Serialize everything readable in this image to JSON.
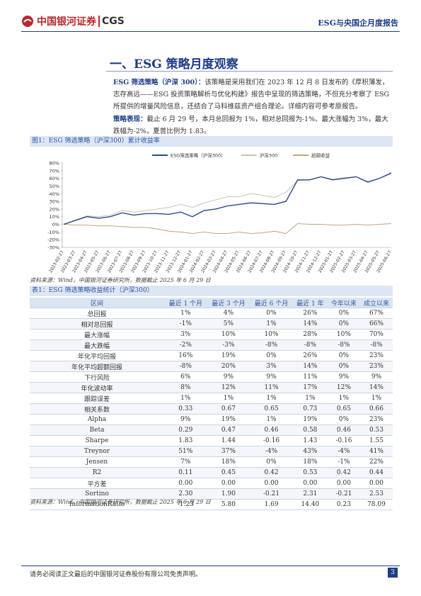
{
  "header": {
    "logo": "中国银河证券",
    "logo_en": "CGS",
    "report": "ESG与央国企月度报告"
  },
  "section": {
    "title": "一、ESG 策略月度观察"
  },
  "paragraphs": [
    {
      "lead": "ESG 筛选策略（沪深 300）：",
      "text": "该策略是采用我们在 2023 年 12 月 8 日发布的《厚积薄发，志存高远——ESG 投资策略解析与优化构建》报告中呈现的筛选策略，不但充分考察了 ESG 所提供的增量风险信息，还结合了马科维兹资产组合理论。详细内容可参考原报告。"
    },
    {
      "lead": "策略表现：",
      "text": "截止 6 月 29 号，本月总回报为 1%，相对总回报为-1%、最大涨幅为 3%，最大跌幅为-2%，夏普比例为 1.83。"
    }
  ],
  "figure": {
    "caption": "图1：ESG 筛选策略（沪深300）累计收益率",
    "source": "资料来源：Wind，中国银河证券研究所，数据截止 2025 年 6 月 29 日"
  },
  "chart_data": {
    "type": "line",
    "categories": [
      "2023-02-27",
      "2023-03-27",
      "2023-04-27",
      "2023-05-27",
      "2023-06-27",
      "2023-07-27",
      "2023-08-27",
      "2023-09-27",
      "2023-10-27",
      "2023-11-27",
      "2023-12-27",
      "2024-01-27",
      "2024-02-27",
      "2024-03-27",
      "2024-04-27",
      "2024-05-27",
      "2024-06-27",
      "2024-07-27",
      "2024-08-27",
      "2024-09-27",
      "2024-10-27",
      "2024-11-27",
      "2024-12-27",
      "2025-01-27",
      "2025-02-27",
      "2025-03-27",
      "2025-04-27",
      "2025-05-27",
      "2025-06-27"
    ],
    "series": [
      {
        "name": "ESG筛选策略（沪深300）",
        "color": "#2e4a8a",
        "values": [
          0,
          5,
          10,
          8,
          10,
          15,
          12,
          14,
          14,
          13,
          16,
          10,
          18,
          20,
          24,
          26,
          28,
          27,
          26,
          30,
          58,
          58,
          62,
          58,
          60,
          62,
          55,
          60,
          67
        ]
      },
      {
        "name": "沪深300",
        "color": "#c9c3b6",
        "values": [
          0,
          6,
          11,
          10,
          12,
          18,
          16,
          18,
          20,
          22,
          26,
          22,
          28,
          32,
          36,
          36,
          40,
          38,
          35,
          42,
          57,
          58,
          62,
          59,
          61,
          62,
          56,
          60,
          66
        ]
      },
      {
        "name": "超额收益",
        "color": "#c4a47c",
        "values": [
          0,
          -1,
          -1,
          -2,
          -2,
          -3,
          -4,
          -4,
          -6,
          -9,
          -10,
          -12,
          -10,
          -12,
          -12,
          -10,
          -12,
          -11,
          -9,
          -12,
          1,
          0,
          0,
          -1,
          -1,
          0,
          -1,
          0,
          1
        ]
      }
    ],
    "ylim": [
      -30,
      80
    ],
    "yticks": [
      {
        "value": 80,
        "label": "80%"
      },
      {
        "value": 70,
        "label": "70%"
      },
      {
        "value": 60,
        "label": "60%"
      },
      {
        "value": 50,
        "label": "50%"
      },
      {
        "value": 40,
        "label": "40%"
      },
      {
        "value": 30,
        "label": "30%"
      },
      {
        "value": 20,
        "label": "20%"
      },
      {
        "value": 10,
        "label": "10%"
      },
      {
        "value": 0,
        "label": "0%"
      },
      {
        "value": -10,
        "label": "-10%"
      },
      {
        "value": -20,
        "label": "-20%"
      },
      {
        "value": -30,
        "label": "-30%"
      }
    ],
    "legend": "top"
  },
  "table": {
    "caption": "表1：ESG 筛选策略收益统计（沪深300）",
    "header": [
      "区间",
      "最近 1 个月",
      "最近 3 个月",
      "最近 6 个月",
      "最近 1 年",
      "今年以来",
      "成立以来"
    ],
    "rows": [
      [
        "总回报",
        "1%",
        "4%",
        "0%",
        "26%",
        "0%",
        "67%"
      ],
      [
        "相对总回报",
        "-1%",
        "5%",
        "1%",
        "14%",
        "0%",
        "66%"
      ],
      [
        "最大涨幅",
        "3%",
        "10%",
        "10%",
        "28%",
        "10%",
        "70%"
      ],
      [
        "最大跌幅",
        "-2%",
        "-3%",
        "-8%",
        "-8%",
        "-8%",
        "-8%"
      ],
      [
        "年化平均回报",
        "16%",
        "19%",
        "0%",
        "26%",
        "0%",
        "23%"
      ],
      [
        "年化平均超额回报",
        "-8%",
        "20%",
        "3%",
        "14%",
        "0%",
        "23%"
      ],
      [
        "下行风险",
        "6%",
        "9%",
        "9%",
        "11%",
        "9%",
        "9%"
      ],
      [
        "年化波动率",
        "8%",
        "12%",
        "11%",
        "17%",
        "12%",
        "14%"
      ],
      [
        "跟踪误差",
        "1%",
        "1%",
        "1%",
        "1%",
        "1%",
        "1%"
      ],
      [
        "相关系数",
        "0.33",
        "0.67",
        "0.65",
        "0.73",
        "0.65",
        "0.66"
      ],
      [
        "Alpha",
        "9%",
        "19%",
        "1%",
        "19%",
        "0%",
        "23%"
      ],
      [
        "Beta",
        "0.29",
        "0.47",
        "0.46",
        "0.58",
        "0.46",
        "0.53"
      ],
      [
        "Sharpe",
        "1.83",
        "1.44",
        "-0.16",
        "1.43",
        "-0.16",
        "1.55"
      ],
      [
        "Treynor",
        "51%",
        "37%",
        "-4%",
        "43%",
        "-4%",
        "41%"
      ],
      [
        "Jensen",
        "7%",
        "18%",
        "0%",
        "18%",
        "-1%",
        "22%"
      ],
      [
        "R2",
        "0.11",
        "0.45",
        "0.42",
        "0.53",
        "0.42",
        "0.44"
      ],
      [
        "平方差",
        "0.00",
        "0.00",
        "0.00",
        "0.00",
        "0.00",
        "0.00"
      ],
      [
        "Sortino",
        "2.30",
        "1.90",
        "-0.21",
        "2.31",
        "-0.21",
        "2.53"
      ],
      [
        "InformationRatio",
        "-1.23",
        "5.80",
        "1.69",
        "14.40",
        "0.23",
        "78.09"
      ]
    ],
    "source": "资料来源：Wind，中国银河证券研究所，数据截止 2025 年 6 月 29 日"
  },
  "footer": {
    "disclaimer": "请务必阅读正文最后的中国银河证券股份有限公司免责声明。",
    "page": "3"
  }
}
